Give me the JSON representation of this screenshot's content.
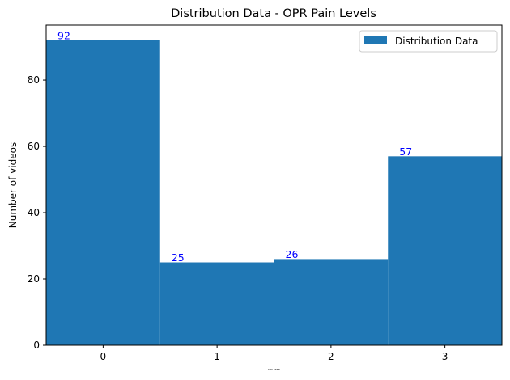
{
  "chart_data": {
    "type": "bar",
    "title": "Distribution Data - OPR Pain Levels",
    "xlabel": "Pain Level",
    "ylabel": "Number of videos",
    "categories": [
      "0",
      "1",
      "2",
      "3"
    ],
    "series": [
      {
        "name": "Distribution Data",
        "values": [
          92,
          25,
          26,
          57
        ]
      }
    ],
    "data_labels": [
      "92",
      "25",
      "26",
      "57"
    ],
    "yticks": [
      "0",
      "20",
      "40",
      "60",
      "80"
    ],
    "ylim": [
      0,
      96.6
    ],
    "xlim": [
      -0.5,
      3.5
    ],
    "grid": false,
    "legend_position": "top-right",
    "bar_color": "#1f77b4",
    "data_label_color": "#0000ff"
  }
}
